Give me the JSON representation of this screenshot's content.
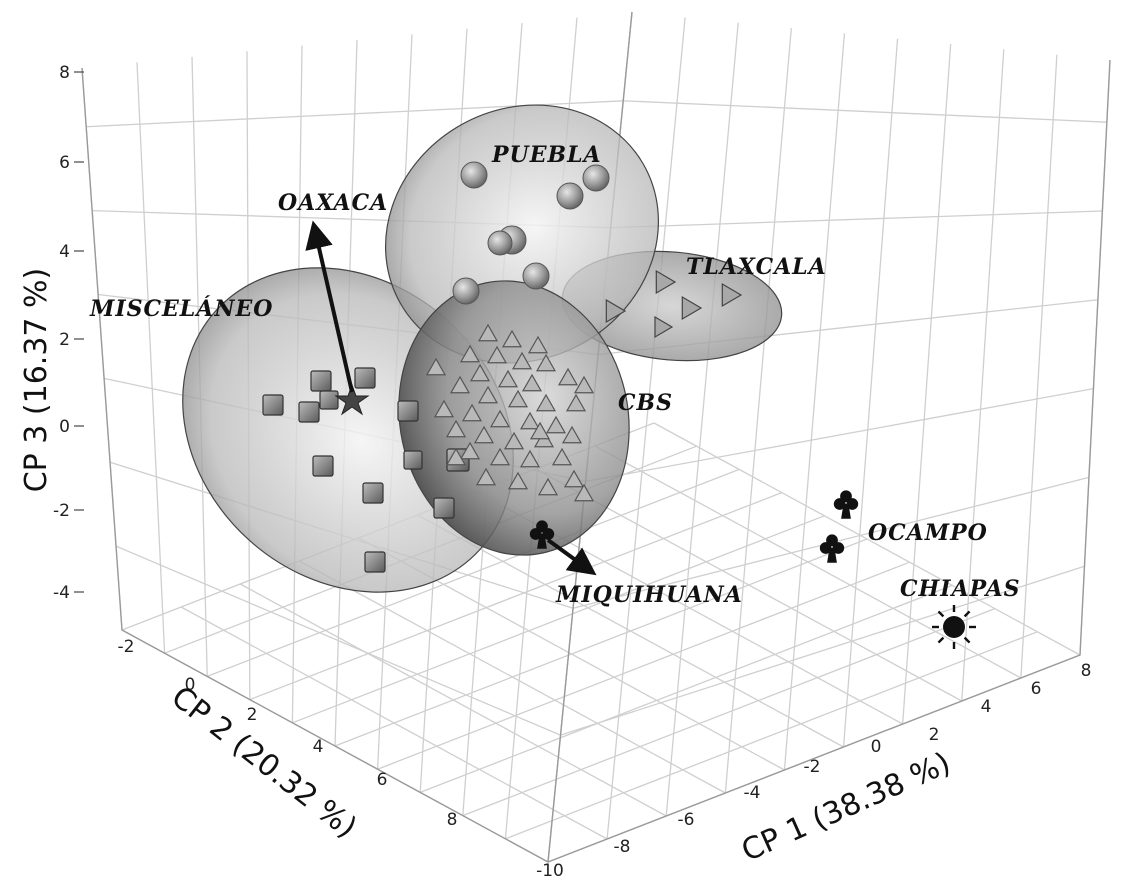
{
  "chart_data": {
    "type": "scatter3d",
    "title": "",
    "axes": {
      "x": {
        "label": "CP 1 (38.38 %)",
        "ticks": [
          "-8",
          "-6",
          "-4",
          "-2",
          "0",
          "2",
          "4",
          "6",
          "8"
        ]
      },
      "y": {
        "label": "CP 2 (20.32 %)",
        "ticks": [
          "-2",
          "0",
          "2",
          "4",
          "6",
          "8",
          "-10"
        ]
      },
      "z": {
        "label": "CP 3 (16.37 %)",
        "ticks": [
          "8",
          "6",
          "4",
          "2",
          "0",
          "-2",
          "-4"
        ]
      }
    },
    "groups": [
      {
        "label": "PUEBLA",
        "marker": "sphere",
        "ellipse": true,
        "color": "#9a9a9a"
      },
      {
        "label": "OAXACA",
        "marker": "star",
        "ellipse": false,
        "color": "#555555"
      },
      {
        "label": "TLAXCALA",
        "marker": "triangle-right",
        "ellipse": true,
        "color": "#8c8c8c"
      },
      {
        "label": "MISCELÁNEO",
        "marker": "square",
        "ellipse": true,
        "color": "#7a7a7a"
      },
      {
        "label": "CBS",
        "marker": "triangle-up",
        "ellipse": true,
        "color": "#9a9a9a"
      },
      {
        "label": "MIQUIHUANA",
        "marker": "club",
        "ellipse": false,
        "color": "#111111"
      },
      {
        "label": "OCAMPO",
        "marker": "club",
        "ellipse": false,
        "color": "#111111"
      },
      {
        "label": "CHIAPAS",
        "marker": "sun",
        "ellipse": false,
        "color": "#111111"
      }
    ],
    "grid": true,
    "legend": "none"
  }
}
